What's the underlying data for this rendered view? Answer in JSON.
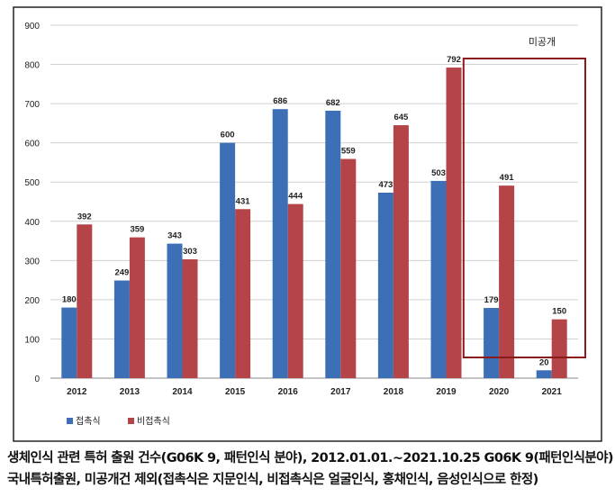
{
  "chart_data": {
    "type": "bar",
    "categories": [
      "2012",
      "2013",
      "2014",
      "2015",
      "2016",
      "2017",
      "2018",
      "2019",
      "2020",
      "2021"
    ],
    "series": [
      {
        "name": "접촉식",
        "color": "#3d6fb6",
        "values": [
          180,
          249,
          343,
          600,
          686,
          682,
          473,
          503,
          179,
          20
        ]
      },
      {
        "name": "비접촉식",
        "color": "#b54448",
        "values": [
          392,
          359,
          303,
          431,
          444,
          559,
          645,
          792,
          491,
          150
        ]
      }
    ],
    "ylim": [
      0,
      900
    ],
    "yticks": [
      0,
      100,
      200,
      300,
      400,
      500,
      600,
      700,
      800,
      900
    ],
    "grid": true,
    "legend": "bottom-left",
    "annotation": {
      "label": "미공개",
      "highlight_categories": [
        "2020",
        "2021"
      ],
      "color": "#8b1a1a"
    },
    "title": "",
    "xlabel": "",
    "ylabel": ""
  },
  "caption": {
    "line1": "생체인식 관련 특허 출원 건수(G06K 9, 패턴인식 분야), 2012.01.01.~2021.10.25   G06K   9(패턴인식분야)",
    "line2": "국내특허출원,  미공개건  제외(접촉식은  지문인식,  비접촉식은  얼굴인식,  홍채인식, 음성인식으로  한정)"
  }
}
